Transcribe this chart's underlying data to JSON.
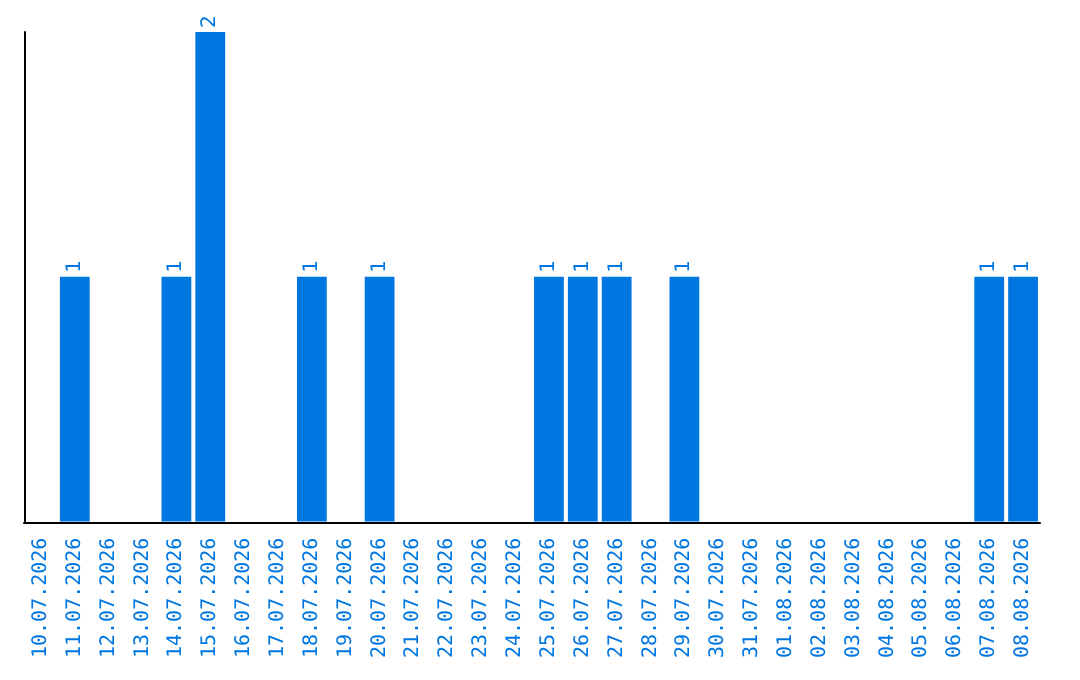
{
  "chart_data": {
    "type": "bar",
    "categories": [
      "10.07.2026",
      "11.07.2026",
      "12.07.2026",
      "13.07.2026",
      "14.07.2026",
      "15.07.2026",
      "16.07.2026",
      "17.07.2026",
      "18.07.2026",
      "19.07.2026",
      "20.07.2026",
      "21.07.2026",
      "22.07.2026",
      "23.07.2026",
      "24.07.2026",
      "25.07.2026",
      "26.07.2026",
      "27.07.2026",
      "28.07.2026",
      "29.07.2026",
      "30.07.2026",
      "31.07.2026",
      "01.08.2026",
      "02.08.2026",
      "03.08.2026",
      "04.08.2026",
      "05.08.2026",
      "06.08.2026",
      "07.08.2026",
      "08.08.2026"
    ],
    "values": [
      0,
      1,
      0,
      0,
      1,
      2,
      0,
      0,
      1,
      0,
      1,
      0,
      0,
      0,
      0,
      1,
      1,
      1,
      0,
      1,
      0,
      0,
      0,
      0,
      0,
      0,
      0,
      0,
      1,
      1
    ],
    "value_labels": [
      null,
      "1",
      null,
      null,
      "1",
      "2",
      null,
      null,
      "1",
      null,
      "1",
      null,
      null,
      null,
      null,
      "1",
      "1",
      "1",
      null,
      "1",
      null,
      null,
      null,
      null,
      null,
      null,
      null,
      null,
      "1",
      "1"
    ],
    "color": "#0077e0",
    "ylim": [
      0,
      2
    ],
    "tick_labels": "x",
    "grid": false
  }
}
